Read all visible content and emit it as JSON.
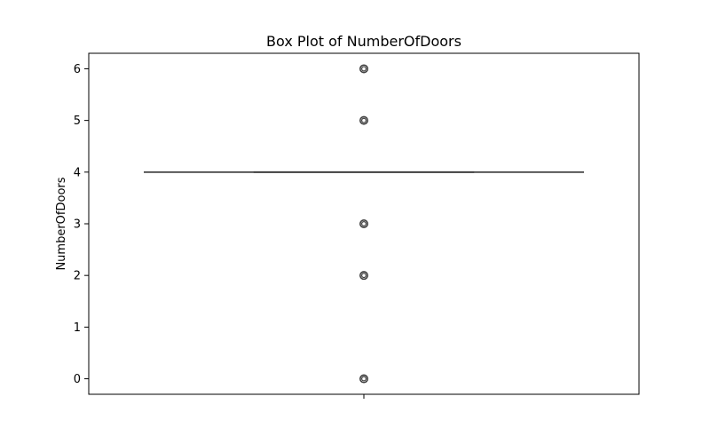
{
  "chart_data": {
    "type": "box",
    "title": "Box Plot of NumberOfDoors",
    "xlabel": "",
    "ylabel": "NumberOfDoors",
    "ylim": [
      -0.3,
      6.3
    ],
    "yticks": [
      0,
      1,
      2,
      3,
      4,
      5,
      6
    ],
    "grid": false,
    "legend": "none",
    "box": {
      "q1": 4,
      "median": 4,
      "q3": 4,
      "whisker_low": 4,
      "whisker_high": 4
    },
    "outliers": [
      6,
      5,
      3,
      2,
      0
    ],
    "colors": {
      "box_line": "#3f3f3f",
      "axis": "#000000",
      "background": "#ffffff"
    }
  }
}
